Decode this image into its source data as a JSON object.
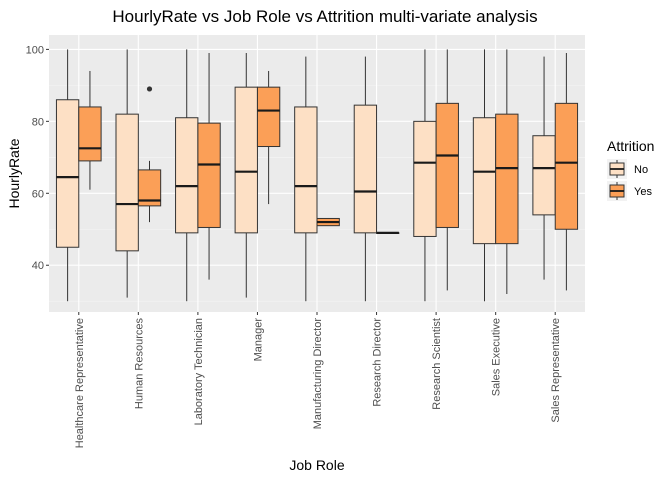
{
  "chart_data": {
    "type": "boxplot",
    "title": "HourlyRate vs Job Role vs Attrition multi-variate analysis",
    "xlabel": "Job Role",
    "ylabel": "HourlyRate",
    "ylim": [
      27,
      104
    ],
    "yticks": [
      40,
      60,
      80,
      100
    ],
    "grid": true,
    "legend": {
      "title": "Attrition",
      "position": "right"
    },
    "categories": [
      "Healthcare Representative",
      "Human Resources",
      "Laboratory Technician",
      "Manager",
      "Manufacturing Director",
      "Research Director",
      "Research Scientist",
      "Sales Executive",
      "Sales Representative"
    ],
    "series": [
      {
        "name": "No",
        "color": "#fde0c5",
        "boxes": [
          {
            "min": 30,
            "q1": 45,
            "median": 64.5,
            "q3": 86,
            "max": 100,
            "outliers": []
          },
          {
            "min": 31,
            "q1": 44,
            "median": 57,
            "q3": 82,
            "max": 100,
            "outliers": []
          },
          {
            "min": 30,
            "q1": 49,
            "median": 62,
            "q3": 81,
            "max": 100,
            "outliers": []
          },
          {
            "min": 31,
            "q1": 49,
            "median": 66,
            "q3": 89.5,
            "max": 99,
            "outliers": []
          },
          {
            "min": 30,
            "q1": 49,
            "median": 62,
            "q3": 84,
            "max": 98,
            "outliers": []
          },
          {
            "min": 30,
            "q1": 49,
            "median": 60.5,
            "q3": 84.5,
            "max": 98,
            "outliers": []
          },
          {
            "min": 30,
            "q1": 48,
            "median": 68.5,
            "q3": 80,
            "max": 100,
            "outliers": []
          },
          {
            "min": 30,
            "q1": 46,
            "median": 66,
            "q3": 81,
            "max": 100,
            "outliers": []
          },
          {
            "min": 36,
            "q1": 54,
            "median": 67,
            "q3": 76,
            "max": 98,
            "outliers": []
          }
        ]
      },
      {
        "name": "Yes",
        "color": "#fb9f57",
        "boxes": [
          {
            "min": 61,
            "q1": 69,
            "median": 72.5,
            "q3": 84,
            "max": 94,
            "outliers": []
          },
          {
            "min": 52,
            "q1": 56.5,
            "median": 58,
            "q3": 66.5,
            "max": 69,
            "outliers": [
              89
            ]
          },
          {
            "min": 36,
            "q1": 50.5,
            "median": 68,
            "q3": 79.5,
            "max": 99,
            "outliers": []
          },
          {
            "min": 57,
            "q1": 73,
            "median": 83,
            "q3": 89.5,
            "max": 94,
            "outliers": []
          },
          {
            "min": 51,
            "q1": 51,
            "median": 52,
            "q3": 53,
            "max": 53,
            "outliers": []
          },
          {
            "min": 49,
            "q1": 49,
            "median": 49,
            "q3": 49,
            "max": 49,
            "outliers": []
          },
          {
            "min": 33,
            "q1": 50.5,
            "median": 70.5,
            "q3": 85,
            "max": 100,
            "outliers": []
          },
          {
            "min": 32,
            "q1": 46,
            "median": 67,
            "q3": 82,
            "max": 100,
            "outliers": []
          },
          {
            "min": 33,
            "q1": 50,
            "median": 68.5,
            "q3": 85,
            "max": 99,
            "outliers": []
          }
        ]
      }
    ]
  }
}
